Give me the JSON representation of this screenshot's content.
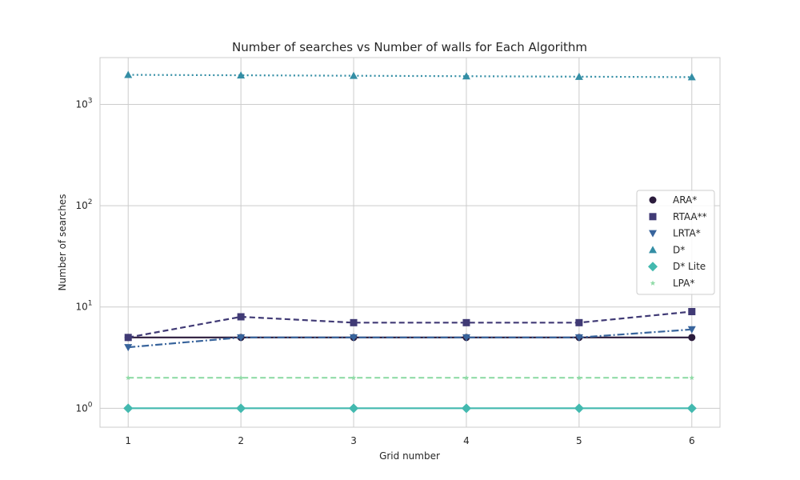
{
  "chart_data": {
    "type": "line",
    "title": "Number of searches vs Number of walls for Each Algorithm",
    "xlabel": "Grid number",
    "ylabel": "Number of searches",
    "x": [
      1,
      2,
      3,
      4,
      5,
      6
    ],
    "xticks": [
      "1",
      "2",
      "3",
      "4",
      "5",
      "6"
    ],
    "y_scale": "log",
    "ylim": [
      0.65,
      2900
    ],
    "yticks": [
      {
        "value": 1,
        "base": "10",
        "exp": "0"
      },
      {
        "value": 10,
        "base": "10",
        "exp": "1"
      },
      {
        "value": 100,
        "base": "10",
        "exp": "2"
      },
      {
        "value": 1000,
        "base": "10",
        "exp": "3"
      }
    ],
    "grid": true,
    "legend_position": "center-right",
    "series": [
      {
        "name": "ARA*",
        "values": [
          5,
          5,
          5,
          5,
          5,
          5
        ],
        "color": "#2b1b3c",
        "dash": "solid",
        "marker": "circle"
      },
      {
        "name": "RTAA**",
        "values": [
          5,
          8,
          7,
          7,
          7,
          9
        ],
        "color": "#403a75",
        "dash": "dashed",
        "marker": "square"
      },
      {
        "name": "LRTA*",
        "values": [
          4,
          5,
          5,
          5,
          5,
          6
        ],
        "color": "#38649c",
        "dash": "dashdot",
        "marker": "triangle-down"
      },
      {
        "name": "D*",
        "values": [
          1960,
          1940,
          1920,
          1900,
          1880,
          1860
        ],
        "color": "#348ea5",
        "dash": "dotted",
        "marker": "triangle-up"
      },
      {
        "name": "D* Lite",
        "values": [
          1,
          1,
          1,
          1,
          1,
          1
        ],
        "color": "#43b9af",
        "dash": "solid",
        "marker": "diamond"
      },
      {
        "name": "LPA*",
        "values": [
          2,
          2,
          2,
          2,
          2,
          2
        ],
        "color": "#90dba7",
        "dash": "dashed",
        "marker": "star"
      }
    ]
  }
}
